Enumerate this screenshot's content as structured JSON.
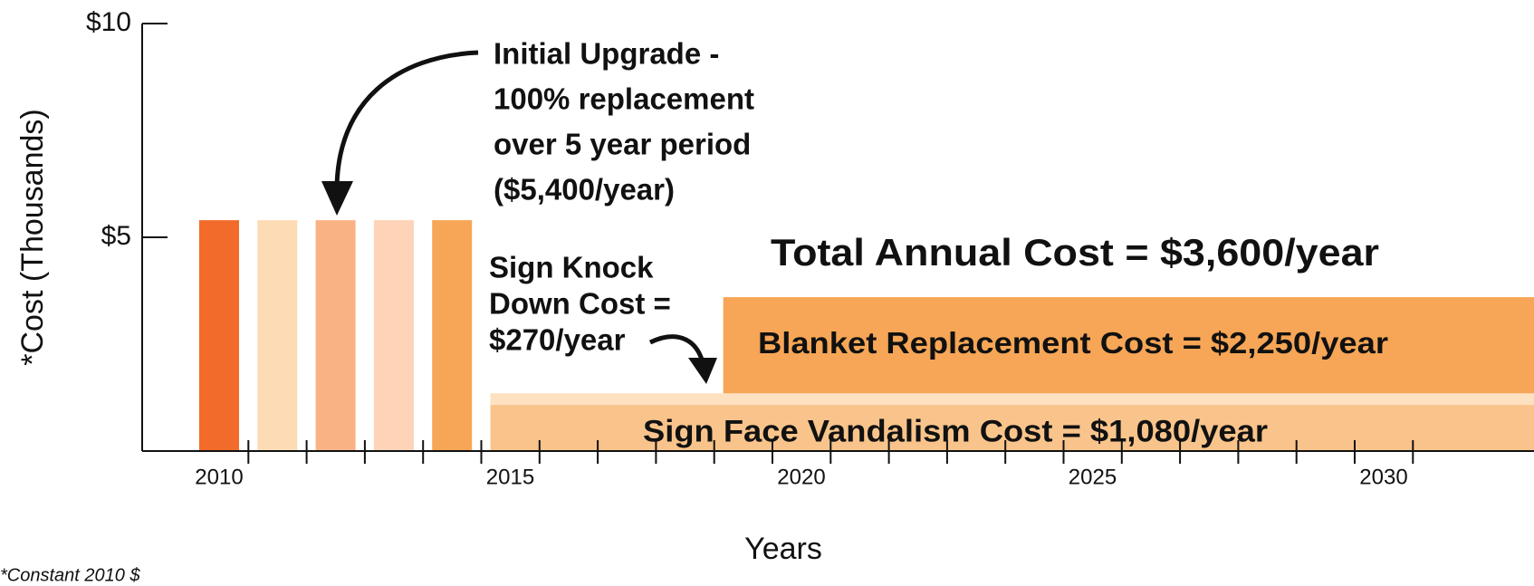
{
  "chart_data": {
    "type": "bar",
    "ylabel": "*Cost (Thousands)",
    "xlabel": "Years",
    "footnote": "*Constant 2010 $",
    "ylim": [
      0,
      10
    ],
    "yticks": [
      {
        "value": 5,
        "label": "$5"
      },
      {
        "value": 10,
        "label": "$10"
      }
    ],
    "xlim": [
      2010,
      2031
    ],
    "xticks": [
      2010,
      2015,
      2020,
      2025,
      2030
    ],
    "bars": {
      "x": [
        2010,
        2011,
        2012,
        2013,
        2014
      ],
      "values": [
        5.4,
        5.4,
        5.4,
        5.4,
        5.4
      ],
      "colors": [
        "#f26b2a",
        "#fddcb5",
        "#f9b283",
        "#fed3b8",
        "#f6a656"
      ],
      "annotation": [
        "Initial Upgrade -",
        "100% replacement",
        "over 5 year period",
        "($5,400/year)"
      ]
    },
    "bands": [
      {
        "label": [
          "Sign Face Vandalism Cost = $1,080/year"
        ],
        "start": 2015,
        "value": 1.08,
        "color": "#f9c48b"
      },
      {
        "label": [
          "Sign Knock",
          "Down Cost =",
          "$270/year"
        ],
        "start": 2015,
        "value": 0.27,
        "color": "#fde1c0"
      },
      {
        "label": [
          "Blanket Replacement Cost = $2,250/year"
        ],
        "start": 2019,
        "value": 2.25,
        "color": "#f6a656"
      }
    ],
    "total_label": "Total Annual Cost = $3,600/year"
  }
}
